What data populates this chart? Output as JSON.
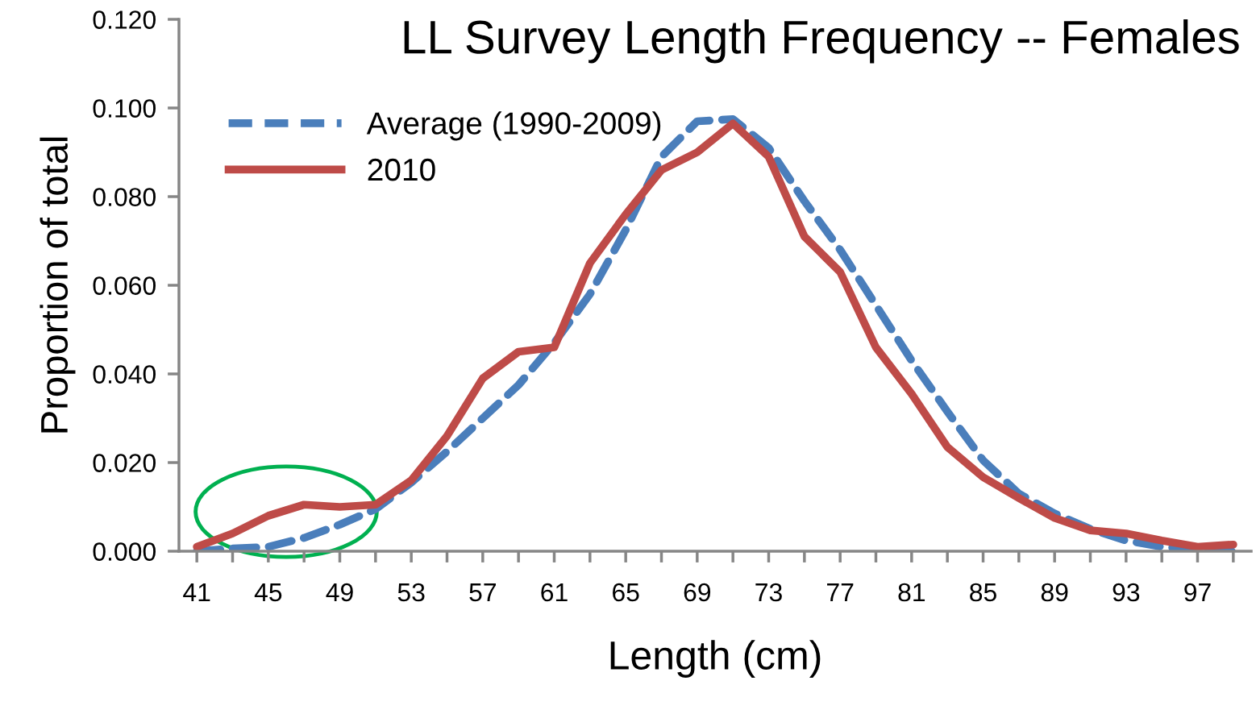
{
  "chart_data": {
    "type": "line",
    "title": "LL Survey Length Frequency -- Females",
    "xlabel": "Length (cm)",
    "ylabel": "Proportion of total",
    "categories": [
      "41",
      null,
      "45",
      null,
      "49",
      null,
      "53",
      null,
      "57",
      null,
      "61",
      null,
      "65",
      null,
      "69",
      null,
      "73",
      null,
      "77",
      null,
      "81",
      null,
      "85",
      null,
      "89",
      null,
      "93",
      null,
      "97",
      null
    ],
    "series": [
      {
        "name": "Average (1990-2009)",
        "color": "#4a7ebb",
        "line_style": "dashed",
        "values": [
          0.0,
          0.0006,
          0.001,
          0.003,
          0.006,
          0.0095,
          0.0155,
          0.0225,
          0.03,
          0.0375,
          0.047,
          0.058,
          0.0725,
          0.089,
          0.097,
          0.0975,
          0.091,
          0.079,
          0.068,
          0.0555,
          0.043,
          0.0315,
          0.0205,
          0.013,
          0.0085,
          0.005,
          0.0024,
          0.001,
          0.0004,
          0.0
        ]
      },
      {
        "name": "2010",
        "color": "#be4b48",
        "line_style": "solid",
        "values": [
          0.001,
          0.004,
          0.008,
          0.0105,
          0.01,
          0.0105,
          0.016,
          0.026,
          0.039,
          0.045,
          0.046,
          0.065,
          0.076,
          0.086,
          0.09,
          0.0965,
          0.089,
          0.071,
          0.063,
          0.046,
          0.0355,
          0.0235,
          0.0167,
          0.012,
          0.0075,
          0.0047,
          0.004,
          0.0024,
          0.001,
          0.0015
        ]
      }
    ],
    "ylim": [
      0,
      0.12
    ],
    "yticks": [
      {
        "value": 0,
        "label": "0.000"
      },
      {
        "value": 0.02,
        "label": "0.020"
      },
      {
        "value": 0.04,
        "label": "0.040"
      },
      {
        "value": 0.06,
        "label": "0.060"
      },
      {
        "value": 0.08,
        "label": "0.080"
      },
      {
        "value": 0.1,
        "label": "0.100"
      },
      {
        "value": 0.12,
        "label": "0.120"
      }
    ],
    "legend": "top left",
    "grid": false,
    "marker": "none"
  }
}
